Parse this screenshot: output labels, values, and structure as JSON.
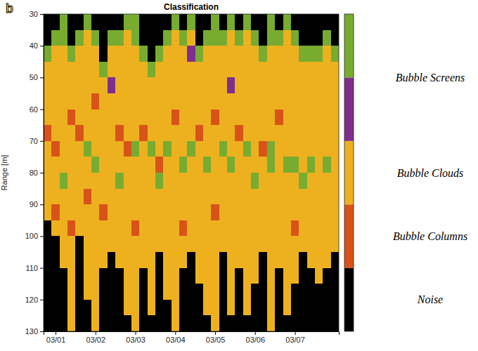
{
  "chart_data": {
    "type": "heatmap",
    "title": "Classification",
    "panel_label": "b",
    "y_label": "Range [m]",
    "xlim": [
      -0.3,
      7.1
    ],
    "xticks": [
      {
        "value": 0,
        "label": "03/01"
      },
      {
        "value": 1,
        "label": "03/02"
      },
      {
        "value": 2,
        "label": "03/03"
      },
      {
        "value": 3,
        "label": "03/04"
      },
      {
        "value": 4,
        "label": "03/05"
      },
      {
        "value": 5,
        "label": "03/06"
      },
      {
        "value": 6,
        "label": "03/07"
      }
    ],
    "ylim": [
      30,
      130
    ],
    "yticks": [
      30,
      40,
      50,
      60,
      70,
      80,
      90,
      100,
      110,
      120,
      130
    ],
    "grid": false,
    "x_edges": [
      -0.3,
      -0.1,
      0.1,
      0.3,
      0.5,
      0.7,
      0.9,
      1.1,
      1.3,
      1.5,
      1.7,
      1.9,
      2.1,
      2.3,
      2.5,
      2.7,
      2.9,
      3.1,
      3.3,
      3.5,
      3.7,
      3.9,
      4.1,
      4.3,
      4.5,
      4.7,
      4.9,
      5.1,
      5.3,
      5.5,
      5.7,
      5.9,
      6.1,
      6.3,
      6.5,
      6.7,
      6.9,
      7.1
    ],
    "y_edges": [
      30,
      35,
      40,
      45,
      50,
      55,
      60,
      65,
      70,
      75,
      80,
      85,
      90,
      95,
      100,
      105,
      110,
      115,
      120,
      125,
      130
    ],
    "cells": [
      [
        0,
        0,
        4,
        2,
        2,
        2,
        2,
        1,
        2,
        2,
        2,
        2,
        2,
        0,
        0,
        0,
        0,
        0,
        0,
        0
      ],
      [
        0,
        4,
        2,
        2,
        2,
        2,
        2,
        2,
        1,
        2,
        2,
        2,
        1,
        2,
        0,
        0,
        0,
        0,
        0,
        0
      ],
      [
        4,
        4,
        2,
        2,
        2,
        2,
        2,
        2,
        2,
        2,
        4,
        2,
        2,
        2,
        2,
        2,
        0,
        0,
        0,
        0
      ],
      [
        0,
        0,
        4,
        2,
        2,
        2,
        1,
        2,
        2,
        2,
        2,
        2,
        2,
        1,
        2,
        2,
        2,
        2,
        2,
        2
      ],
      [
        0,
        4,
        2,
        2,
        2,
        2,
        2,
        1,
        2,
        2,
        2,
        2,
        2,
        2,
        0,
        0,
        0,
        0,
        0,
        0
      ],
      [
        4,
        2,
        2,
        2,
        2,
        2,
        2,
        2,
        4,
        2,
        2,
        1,
        2,
        2,
        2,
        2,
        2,
        2,
        0,
        0
      ],
      [
        0,
        4,
        2,
        2,
        2,
        1,
        2,
        2,
        2,
        4,
        2,
        2,
        2,
        2,
        2,
        2,
        2,
        2,
        2,
        2
      ],
      [
        0,
        0,
        0,
        4,
        2,
        2,
        2,
        2,
        2,
        2,
        2,
        2,
        1,
        2,
        2,
        2,
        0,
        0,
        0,
        0
      ],
      [
        0,
        4,
        2,
        2,
        3,
        2,
        2,
        2,
        2,
        2,
        2,
        2,
        2,
        2,
        2,
        0,
        0,
        0,
        0,
        0
      ],
      [
        0,
        4,
        2,
        2,
        2,
        2,
        2,
        1,
        2,
        2,
        4,
        2,
        2,
        2,
        2,
        2,
        0,
        0,
        0,
        0
      ],
      [
        4,
        2,
        2,
        2,
        2,
        2,
        2,
        2,
        1,
        2,
        2,
        2,
        2,
        2,
        2,
        2,
        2,
        2,
        2,
        0
      ],
      [
        4,
        4,
        2,
        2,
        2,
        2,
        2,
        2,
        4,
        2,
        2,
        2,
        2,
        1,
        2,
        2,
        2,
        2,
        2,
        2
      ],
      [
        0,
        0,
        4,
        2,
        2,
        2,
        2,
        1,
        2,
        2,
        2,
        2,
        2,
        2,
        2,
        2,
        0,
        0,
        0,
        0
      ],
      [
        0,
        0,
        0,
        4,
        2,
        2,
        2,
        2,
        4,
        2,
        2,
        2,
        2,
        2,
        2,
        2,
        2,
        2,
        2,
        0
      ],
      [
        0,
        0,
        4,
        2,
        2,
        2,
        2,
        2,
        2,
        1,
        4,
        2,
        2,
        2,
        2,
        0,
        0,
        0,
        0,
        0
      ],
      [
        0,
        4,
        2,
        2,
        2,
        2,
        2,
        2,
        4,
        2,
        2,
        2,
        2,
        2,
        2,
        2,
        2,
        2,
        0,
        0
      ],
      [
        4,
        2,
        2,
        2,
        2,
        2,
        1,
        2,
        2,
        2,
        2,
        2,
        2,
        2,
        2,
        2,
        2,
        2,
        2,
        2
      ],
      [
        0,
        4,
        2,
        2,
        2,
        2,
        2,
        2,
        2,
        4,
        2,
        2,
        2,
        1,
        2,
        2,
        0,
        0,
        0,
        0
      ],
      [
        4,
        2,
        3,
        2,
        2,
        2,
        2,
        2,
        4,
        2,
        2,
        2,
        2,
        2,
        2,
        0,
        0,
        0,
        0,
        0
      ],
      [
        0,
        0,
        4,
        2,
        2,
        2,
        2,
        1,
        2,
        2,
        2,
        2,
        2,
        2,
        2,
        2,
        2,
        0,
        0,
        0
      ],
      [
        0,
        4,
        2,
        2,
        2,
        2,
        2,
        2,
        2,
        4,
        2,
        2,
        2,
        2,
        2,
        2,
        2,
        2,
        2,
        0
      ],
      [
        4,
        4,
        2,
        2,
        2,
        2,
        1,
        2,
        2,
        2,
        2,
        2,
        1,
        2,
        2,
        2,
        2,
        2,
        2,
        2
      ],
      [
        0,
        4,
        2,
        2,
        2,
        2,
        2,
        2,
        4,
        2,
        2,
        2,
        2,
        2,
        2,
        0,
        0,
        0,
        0,
        0
      ],
      [
        4,
        2,
        2,
        2,
        3,
        2,
        2,
        2,
        2,
        4,
        2,
        2,
        2,
        2,
        2,
        2,
        2,
        2,
        2,
        0
      ],
      [
        0,
        4,
        2,
        2,
        2,
        2,
        2,
        1,
        2,
        2,
        2,
        2,
        2,
        2,
        2,
        2,
        0,
        0,
        0,
        0
      ],
      [
        4,
        2,
        2,
        2,
        2,
        2,
        2,
        2,
        4,
        2,
        2,
        2,
        2,
        2,
        2,
        2,
        2,
        2,
        2,
        0
      ],
      [
        0,
        4,
        2,
        2,
        2,
        2,
        2,
        2,
        2,
        2,
        4,
        2,
        2,
        2,
        2,
        2,
        2,
        0,
        0,
        0
      ],
      [
        0,
        0,
        4,
        2,
        2,
        2,
        2,
        2,
        1,
        2,
        2,
        2,
        2,
        2,
        2,
        0,
        0,
        0,
        0,
        0
      ],
      [
        4,
        4,
        2,
        2,
        2,
        2,
        2,
        2,
        4,
        4,
        2,
        2,
        2,
        2,
        2,
        2,
        2,
        2,
        2,
        2
      ],
      [
        0,
        4,
        2,
        2,
        2,
        2,
        1,
        2,
        2,
        2,
        2,
        2,
        2,
        2,
        2,
        2,
        0,
        0,
        0,
        0
      ],
      [
        4,
        2,
        2,
        2,
        2,
        2,
        2,
        2,
        2,
        4,
        2,
        2,
        2,
        2,
        2,
        2,
        2,
        2,
        2,
        0
      ],
      [
        0,
        4,
        2,
        2,
        2,
        2,
        2,
        2,
        2,
        4,
        2,
        2,
        2,
        1,
        2,
        2,
        2,
        0,
        0,
        0
      ],
      [
        0,
        0,
        4,
        2,
        2,
        2,
        2,
        2,
        2,
        2,
        4,
        2,
        2,
        2,
        2,
        0,
        0,
        0,
        0,
        0
      ],
      [
        0,
        0,
        4,
        2,
        2,
        2,
        2,
        2,
        2,
        4,
        2,
        2,
        2,
        2,
        2,
        2,
        0,
        0,
        0,
        0
      ],
      [
        0,
        0,
        4,
        2,
        2,
        2,
        2,
        2,
        2,
        2,
        2,
        2,
        2,
        2,
        2,
        2,
        2,
        0,
        0,
        0
      ],
      [
        0,
        4,
        2,
        2,
        2,
        2,
        2,
        2,
        2,
        4,
        2,
        2,
        2,
        2,
        2,
        2,
        0,
        0,
        0,
        0
      ],
      [
        0,
        0,
        4,
        2,
        2,
        2,
        2,
        2,
        2,
        2,
        2,
        2,
        2,
        2,
        2,
        0,
        0,
        0,
        0,
        0
      ]
    ],
    "colorbar": {
      "colors": [
        "#000000",
        "#d95319",
        "#edb120",
        "#7e2f8e",
        "#77ac30"
      ],
      "range": [
        -0.5,
        4.5
      ],
      "ticks": [
        {
          "value": 0,
          "label": "Noise"
        },
        {
          "value": 1,
          "label": "Bubble Columns"
        },
        {
          "value": 2,
          "label": "Bubble Clouds"
        },
        {
          "value": 3.5,
          "label": "Bubble Screens"
        }
      ]
    }
  }
}
